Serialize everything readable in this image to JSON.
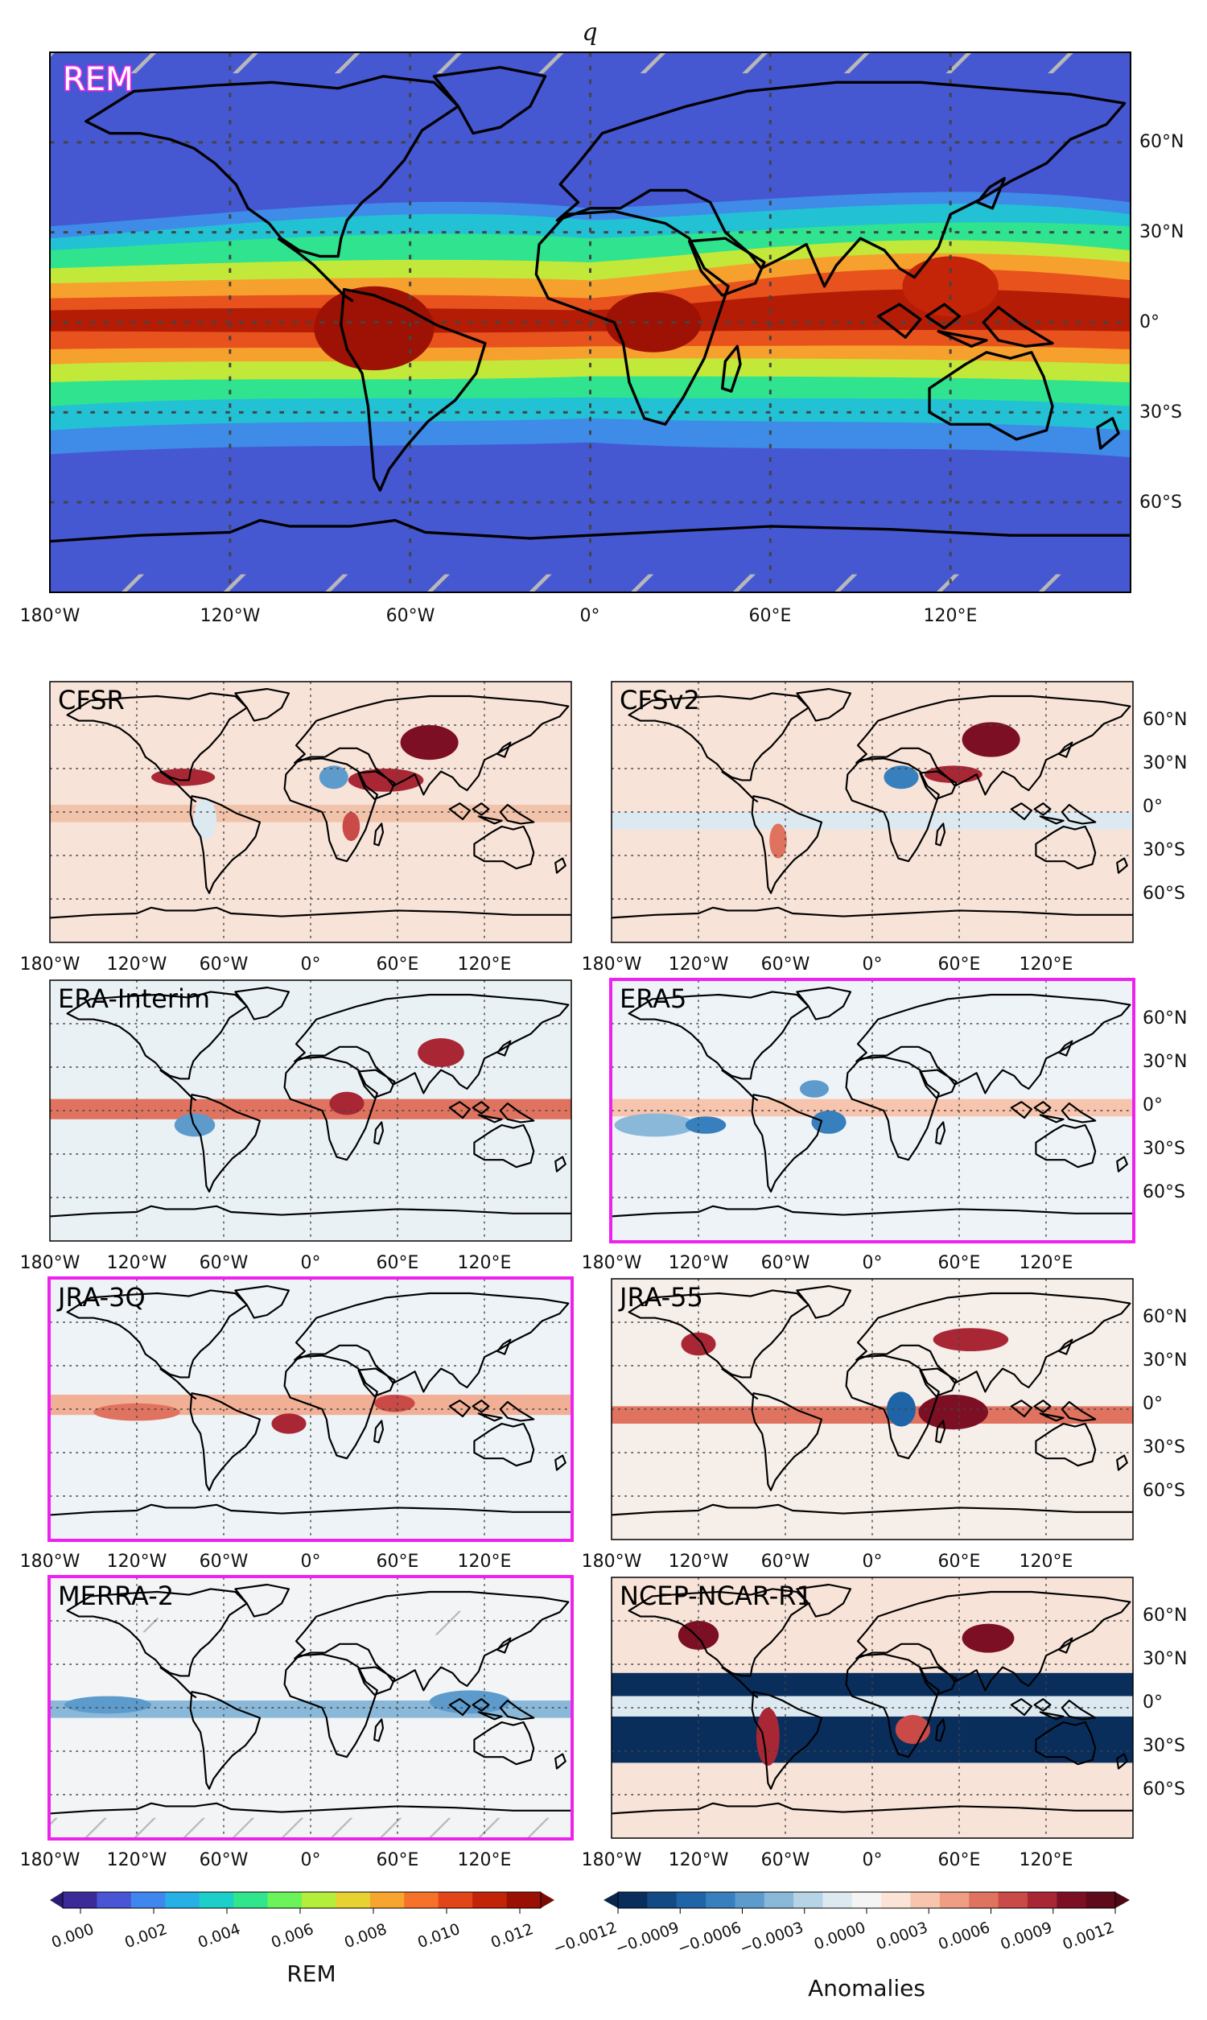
{
  "figure": {
    "title": "q",
    "main_panel": {
      "label": "REM",
      "label_color": "#ff22ee",
      "x_ticks": [
        "180°W",
        "120°W",
        "60°W",
        "0°",
        "60°E",
        "120°E"
      ],
      "y_ticks": [
        "60°N",
        "30°N",
        "0°",
        "30°S",
        "60°S"
      ]
    },
    "panels": [
      {
        "id": "cfsr",
        "label": "CFSR",
        "highlighted": false,
        "y_ticks_shown": false
      },
      {
        "id": "cfsv2",
        "label": "CFSv2",
        "highlighted": false,
        "y_ticks_shown": true
      },
      {
        "id": "era-interim",
        "label": "ERA-Interim",
        "highlighted": false,
        "y_ticks_shown": false
      },
      {
        "id": "era5",
        "label": "ERA5",
        "highlighted": true,
        "y_ticks_shown": true
      },
      {
        "id": "jra-3q",
        "label": "JRA-3Q",
        "highlighted": true,
        "y_ticks_shown": false
      },
      {
        "id": "jra-55",
        "label": "JRA-55",
        "highlighted": false,
        "y_ticks_shown": true
      },
      {
        "id": "merra-2",
        "label": "MERRA-2",
        "highlighted": true,
        "y_ticks_shown": false
      },
      {
        "id": "ncep-ncar-r1",
        "label": "NCEP-NCAR-R1",
        "highlighted": false,
        "y_ticks_shown": true
      }
    ],
    "small_x_ticks": [
      "180°W",
      "120°W",
      "60°W",
      "0°",
      "60°E",
      "120°E"
    ],
    "small_y_ticks": [
      "60°N",
      "30°N",
      "0°",
      "30°S",
      "60°S"
    ],
    "highlight_color": "#ee22ee",
    "colorbar_rem": {
      "label": "REM",
      "ticks": [
        "0.000",
        "0.002",
        "0.004",
        "0.006",
        "0.008",
        "0.010",
        "0.012"
      ],
      "colors": [
        "#3a2a9a",
        "#4a55d6",
        "#3f87ef",
        "#26b0e6",
        "#1ccfc8",
        "#2fe68c",
        "#6cf35a",
        "#b3ee3a",
        "#e8d232",
        "#f8a530",
        "#f6722a",
        "#e24518",
        "#c32408",
        "#9b1004"
      ]
    },
    "colorbar_anom": {
      "label": "Anomalies",
      "ticks": [
        "−0.0012",
        "−0.0009",
        "−0.0006",
        "−0.0003",
        "0.0000",
        "0.0003",
        "0.0006",
        "0.0009",
        "0.0012"
      ],
      "colors": [
        "#0a2e5c",
        "#124a86",
        "#1f64a6",
        "#377fbd",
        "#5c9bcc",
        "#8ab8d9",
        "#b7d3e6",
        "#dde9f1",
        "#f4f4f4",
        "#fbe3d6",
        "#f7c4ad",
        "#ef9e84",
        "#df735f",
        "#c94a46",
        "#a92735",
        "#7d0f24",
        "#5e0a1a"
      ]
    }
  }
}
